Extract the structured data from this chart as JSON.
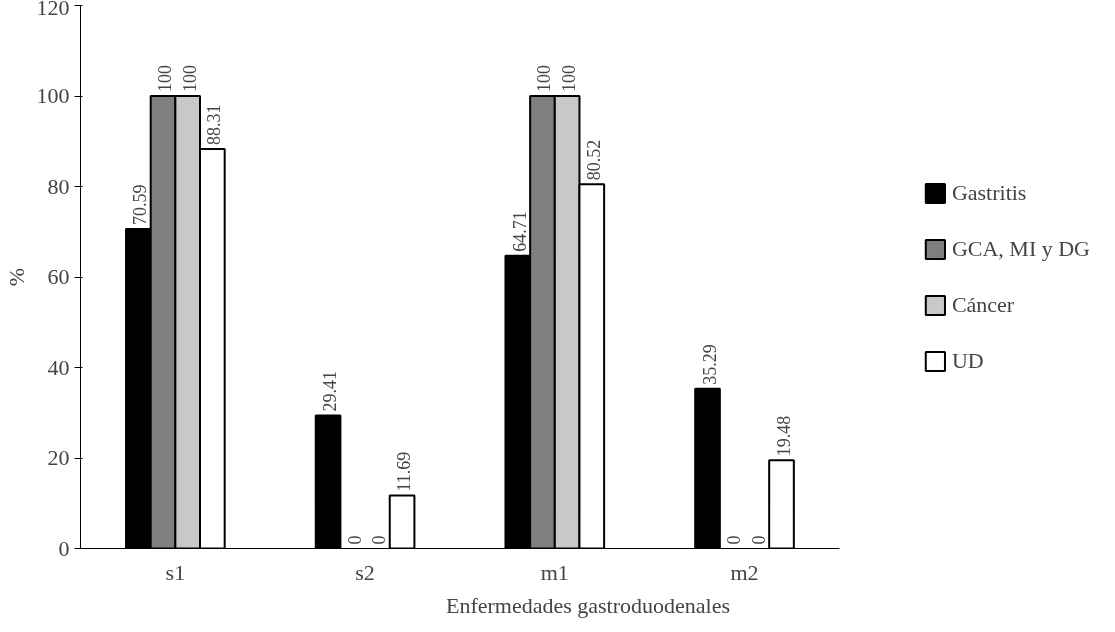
{
  "chart_data": {
    "type": "bar",
    "xlabel": "Enfermedades gastroduodenales",
    "ylabel": "%",
    "categories": [
      "s1",
      "s2",
      "m1",
      "m2"
    ],
    "series": [
      {
        "name": "Gastritis",
        "color": "#000000",
        "values": [
          70.59,
          29.41,
          64.71,
          35.29
        ]
      },
      {
        "name": "GCA, MI y DG",
        "color": "#7f7f7f",
        "values": [
          100,
          0,
          100,
          0
        ]
      },
      {
        "name": "Cáncer",
        "color": "#c8c8c8",
        "values": [
          100,
          0,
          100,
          0
        ]
      },
      {
        "name": "UD",
        "color": "#ffffff",
        "values": [
          88.31,
          11.69,
          80.52,
          19.48
        ]
      }
    ],
    "ylim": [
      0,
      120
    ],
    "yticks": [
      0,
      20,
      40,
      60,
      80,
      100,
      120
    ],
    "grid": false,
    "legend": "right",
    "data_labels": true
  }
}
